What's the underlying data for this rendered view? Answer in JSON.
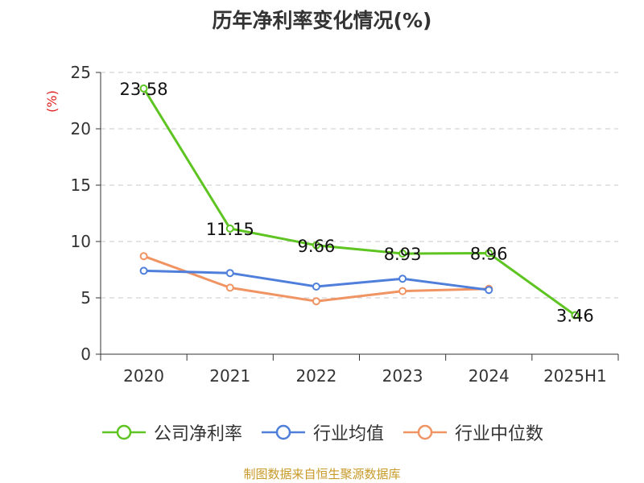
{
  "chart_data": {
    "type": "line",
    "title": "历年净利率变化情况(%)",
    "ylabel": "(%)",
    "categories": [
      "2020",
      "2021",
      "2022",
      "2023",
      "2024",
      "2025H1"
    ],
    "ylim": [
      0,
      25
    ],
    "yticks": [
      0,
      5,
      10,
      15,
      20,
      25
    ],
    "grid": true,
    "legend_position": "bottom",
    "series": [
      {
        "name": "公司净利率",
        "color": "#5ec422",
        "values": [
          23.58,
          11.15,
          9.66,
          8.93,
          8.96,
          3.46
        ],
        "show_labels": true,
        "labels": [
          "23.58",
          "11.15",
          "9.66",
          "8.93",
          "8.96",
          "3.46"
        ]
      },
      {
        "name": "行业均值",
        "color": "#4f7fdb",
        "values": [
          7.4,
          7.2,
          6.0,
          6.7,
          5.7,
          null
        ],
        "show_labels": false
      },
      {
        "name": "行业中位数",
        "color": "#f09464",
        "values": [
          8.7,
          5.9,
          4.7,
          5.6,
          5.8,
          null
        ],
        "show_labels": false
      }
    ]
  },
  "colors": {
    "ylabel": "#e02020",
    "source": "#c89a28",
    "axis": "#333333",
    "grid": "#c8c8c8"
  },
  "source_text": "制图数据来自恒生聚源数据库"
}
